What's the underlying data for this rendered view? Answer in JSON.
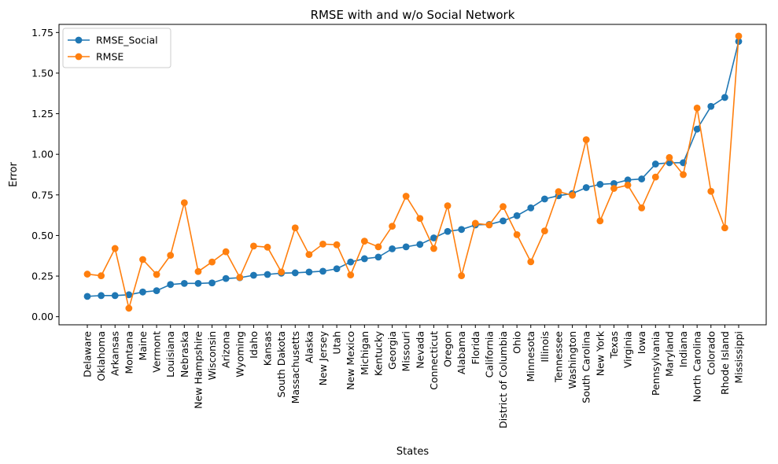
{
  "chart_data": {
    "type": "line",
    "title": "RMSE with and w/o Social Network",
    "xlabel": "States",
    "ylabel": "Error",
    "ylim": [
      -0.05,
      1.8
    ],
    "yticks": [
      "0.00",
      "0.25",
      "0.50",
      "0.75",
      "1.00",
      "1.25",
      "1.50",
      "1.75"
    ],
    "grid": false,
    "legend_position": "top-left",
    "categories": [
      "Delaware",
      "Oklahoma",
      "Arkansas",
      "Montana",
      "Maine",
      "Vermont",
      "Louisiana",
      "Nebraska",
      "New Hampshire",
      "Wisconsin",
      "Arizona",
      "Wyoming",
      "Idaho",
      "Kansas",
      "South Dakota",
      "Massachusetts",
      "Alaska",
      "New Jersey",
      "Utah",
      "New Mexico",
      "Michigan",
      "Kentucky",
      "Georgia",
      "Missouri",
      "Nevada",
      "Connecticut",
      "Oregon",
      "Alabama",
      "Florida",
      "California",
      "District of Columbia",
      "Ohio",
      "Minnesota",
      "Illinois",
      "Tennessee",
      "Washington",
      "South Carolina",
      "New York",
      "Texas",
      "Virginia",
      "Iowa",
      "Pennsylvania",
      "Maryland",
      "Indiana",
      "North Carolina",
      "Colorado",
      "Rhode Island",
      "Mississippi"
    ],
    "series": [
      {
        "name": "RMSE_Social",
        "color": "#1f77b4",
        "values": [
          0.125,
          0.13,
          0.13,
          0.135,
          0.152,
          0.16,
          0.198,
          0.205,
          0.205,
          0.208,
          0.235,
          0.24,
          0.255,
          0.26,
          0.268,
          0.27,
          0.275,
          0.28,
          0.295,
          0.337,
          0.357,
          0.367,
          0.418,
          0.43,
          0.445,
          0.485,
          0.525,
          0.537,
          0.565,
          0.568,
          0.59,
          0.622,
          0.67,
          0.725,
          0.745,
          0.758,
          0.795,
          0.815,
          0.82,
          0.842,
          0.848,
          0.94,
          0.948,
          0.948,
          1.155,
          1.295,
          1.35,
          1.695
        ]
      },
      {
        "name": "RMSE",
        "color": "#ff7f0e",
        "values": [
          0.262,
          0.252,
          0.42,
          0.052,
          0.352,
          0.26,
          0.378,
          0.702,
          0.278,
          0.337,
          0.4,
          0.242,
          0.435,
          0.428,
          0.275,
          0.547,
          0.383,
          0.447,
          0.443,
          0.257,
          0.465,
          0.43,
          0.557,
          0.742,
          0.605,
          0.42,
          0.683,
          0.252,
          0.575,
          0.565,
          0.678,
          0.505,
          0.338,
          0.528,
          0.77,
          0.748,
          1.09,
          0.59,
          0.79,
          0.81,
          0.67,
          0.86,
          0.98,
          0.875,
          1.285,
          0.772,
          0.547,
          1.728
        ]
      }
    ]
  }
}
